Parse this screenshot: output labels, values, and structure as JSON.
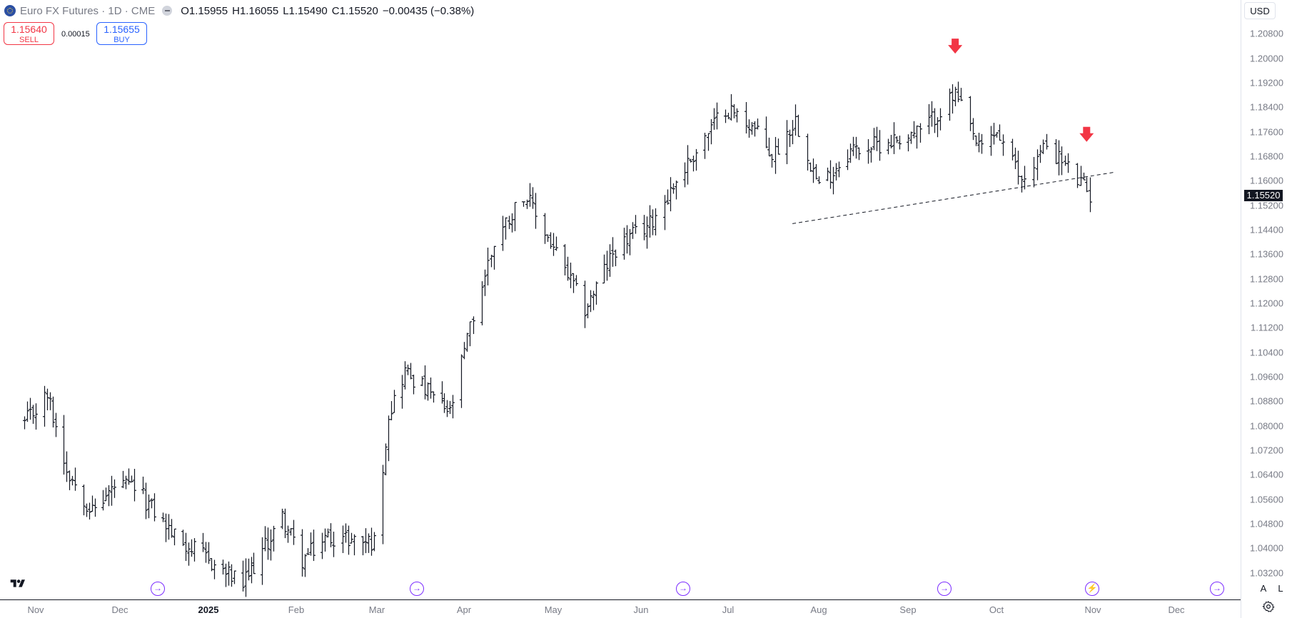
{
  "header": {
    "symbol_title": "Euro FX Futures · 1D · CME",
    "open_key": "O",
    "open": "1.15955",
    "high_key": "H",
    "high": "1.16055",
    "low_key": "L",
    "low": "1.15490",
    "close_key": "C",
    "close": "1.15520",
    "change": "−0.00435 (−0.38%)",
    "change_color": "#131722"
  },
  "trade": {
    "sell_price": "1.15640",
    "sell_label": "SELL",
    "buy_price": "1.15655",
    "buy_label": "BUY",
    "spread": "0.00015",
    "sell_color": "#f23645",
    "buy_color": "#2962ff"
  },
  "currency": "USD",
  "price_axis": {
    "labels": [
      "1.20800",
      "1.20000",
      "1.19200",
      "1.18400",
      "1.17600",
      "1.16800",
      "1.16000",
      "1.15200",
      "1.14400",
      "1.13600",
      "1.12800",
      "1.12000",
      "1.11200",
      "1.10400",
      "1.09600",
      "1.08800",
      "1.08000",
      "1.07200",
      "1.06400",
      "1.05600",
      "1.04800",
      "1.04000",
      "1.03200"
    ],
    "last_price": "1.15520"
  },
  "time_axis": {
    "labels": [
      {
        "text": "Nov",
        "bold": false
      },
      {
        "text": "Dec",
        "bold": false
      },
      {
        "text": "2025",
        "bold": true
      },
      {
        "text": "Feb",
        "bold": false
      },
      {
        "text": "Mar",
        "bold": false
      },
      {
        "text": "Apr",
        "bold": false
      },
      {
        "text": "May",
        "bold": false
      },
      {
        "text": "Jun",
        "bold": false
      },
      {
        "text": "Jul",
        "bold": false
      },
      {
        "text": "Aug",
        "bold": false
      },
      {
        "text": "Sep",
        "bold": false
      },
      {
        "text": "Oct",
        "bold": false
      },
      {
        "text": "Nov",
        "bold": false
      },
      {
        "text": "Dec",
        "bold": false
      }
    ]
  },
  "events": [
    "dividend-arrow-icon",
    "dividend-arrow-icon",
    "dividend-arrow-icon",
    "dividend-arrow-icon",
    "lightning-icon",
    "dividend-arrow-icon"
  ],
  "scale_buttons": {
    "auto": "A",
    "log": "L"
  },
  "chart_data": {
    "type": "ohlc-bar",
    "symbol": "Euro FX Futures",
    "interval": "1D",
    "ylim": [
      1.028,
      1.212
    ],
    "anchors": [
      {
        "date": "2024-10-28",
        "close": 1.0808
      },
      {
        "date": "2024-11-05",
        "close": 1.09
      },
      {
        "date": "2024-11-12",
        "close": 1.066
      },
      {
        "date": "2024-11-21",
        "close": 1.052
      },
      {
        "date": "2024-11-29",
        "close": 1.06
      },
      {
        "date": "2024-12-06",
        "close": 1.06
      },
      {
        "date": "2024-12-20",
        "close": 1.044
      },
      {
        "date": "2025-01-13",
        "close": 1.028
      },
      {
        "date": "2025-01-27",
        "close": 1.05
      },
      {
        "date": "2025-02-03",
        "close": 1.036
      },
      {
        "date": "2025-02-12",
        "close": 1.044
      },
      {
        "date": "2025-02-28",
        "close": 1.042
      },
      {
        "date": "2025-03-05",
        "close": 1.084
      },
      {
        "date": "2025-03-11",
        "close": 1.098
      },
      {
        "date": "2025-03-27",
        "close": 1.084
      },
      {
        "date": "2025-04-03",
        "close": 1.112
      },
      {
        "date": "2025-04-11",
        "close": 1.14
      },
      {
        "date": "2025-04-21",
        "close": 1.156
      },
      {
        "date": "2025-05-12",
        "close": 1.118
      },
      {
        "date": "2025-05-23",
        "close": 1.138
      },
      {
        "date": "2025-06-04",
        "close": 1.146
      },
      {
        "date": "2025-06-13",
        "close": 1.16
      },
      {
        "date": "2025-06-30",
        "close": 1.184
      },
      {
        "date": "2025-07-09",
        "close": 1.178
      },
      {
        "date": "2025-07-16",
        "close": 1.168
      },
      {
        "date": "2025-07-24",
        "close": 1.18
      },
      {
        "date": "2025-08-01",
        "close": 1.158
      },
      {
        "date": "2025-08-12",
        "close": 1.17
      },
      {
        "date": "2025-08-22",
        "close": 1.172
      },
      {
        "date": "2025-09-05",
        "close": 1.176
      },
      {
        "date": "2025-09-17",
        "close": 1.188
      },
      {
        "date": "2025-09-25",
        "close": 1.17
      },
      {
        "date": "2025-10-01",
        "close": 1.176
      },
      {
        "date": "2025-10-09",
        "close": 1.16
      },
      {
        "date": "2025-10-17",
        "close": 1.172
      },
      {
        "date": "2025-10-24",
        "close": 1.164
      },
      {
        "date": "2025-10-31",
        "close": 1.1552
      }
    ],
    "trendline": {
      "start": {
        "date": "2025-07-23",
        "price": 1.146
      },
      "end": {
        "date": "2025-11-09",
        "price": 1.1628
      }
    },
    "markers": [
      {
        "date": "2025-09-17",
        "price": 1.2036,
        "type": "down-arrow",
        "color": "#f23645"
      },
      {
        "date": "2025-10-30",
        "price": 1.1748,
        "type": "down-arrow",
        "color": "#f23645"
      }
    ]
  }
}
